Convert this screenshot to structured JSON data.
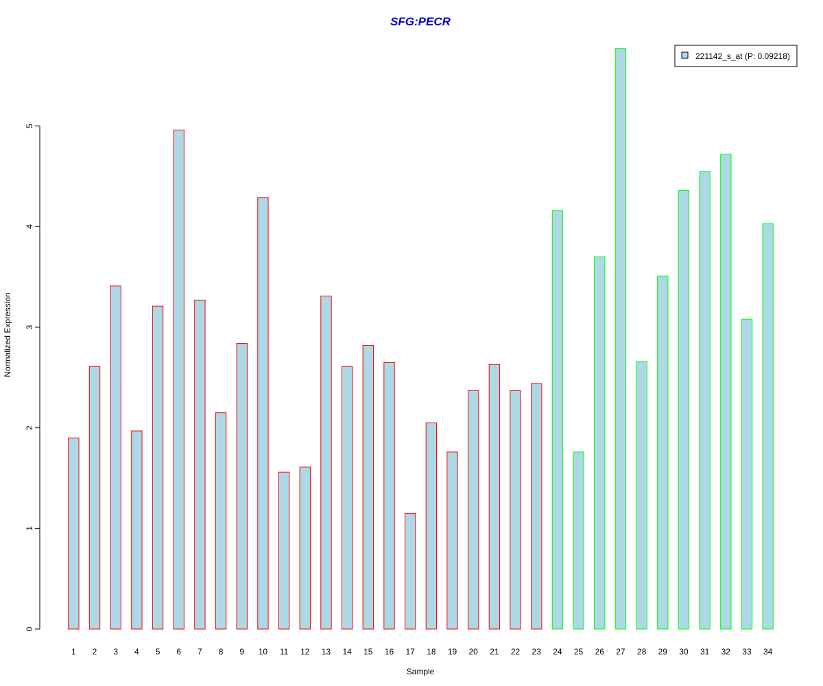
{
  "colors": {
    "bar_fill": "#add8e6",
    "group1_border": "#ff0000",
    "group2_border": "#00ff00",
    "title": "#0000cc",
    "axis": "#000000"
  },
  "chart_data": {
    "type": "bar",
    "title": "SFG:PECR",
    "xlabel": "Sample",
    "ylabel": "Normalized Expression",
    "ylim": [
      0,
      5.85
    ],
    "yticks": [
      0,
      1,
      2,
      3,
      4,
      5
    ],
    "ytick_labels": [
      "0",
      "1",
      "2",
      "3",
      "4",
      "5"
    ],
    "categories": [
      "1",
      "2",
      "3",
      "4",
      "5",
      "6",
      "7",
      "8",
      "9",
      "10",
      "11",
      "12",
      "13",
      "14",
      "15",
      "16",
      "17",
      "18",
      "19",
      "20",
      "21",
      "22",
      "23",
      "24",
      "25",
      "26",
      "27",
      "28",
      "29",
      "30",
      "31",
      "32",
      "33",
      "34"
    ],
    "series": [
      {
        "name": "221142_s_at (P: 0.09218)",
        "values": [
          1.9,
          2.61,
          3.41,
          1.97,
          3.21,
          4.96,
          3.27,
          2.15,
          2.84,
          4.29,
          1.56,
          1.61,
          3.31,
          2.61,
          2.82,
          2.65,
          1.15,
          2.05,
          1.76,
          2.37,
          2.63,
          2.37,
          2.44,
          4.16,
          1.76,
          3.7,
          5.77,
          2.66,
          3.51,
          4.36,
          4.55,
          4.72,
          3.08,
          4.03
        ]
      }
    ],
    "groups": [
      "red",
      "red",
      "red",
      "red",
      "red",
      "red",
      "red",
      "red",
      "red",
      "red",
      "red",
      "red",
      "red",
      "red",
      "red",
      "red",
      "red",
      "red",
      "red",
      "red",
      "red",
      "red",
      "red",
      "green",
      "green",
      "green",
      "green",
      "green",
      "green",
      "green",
      "green",
      "green",
      "green",
      "green"
    ],
    "grid": false,
    "legend_position": "top-right"
  }
}
